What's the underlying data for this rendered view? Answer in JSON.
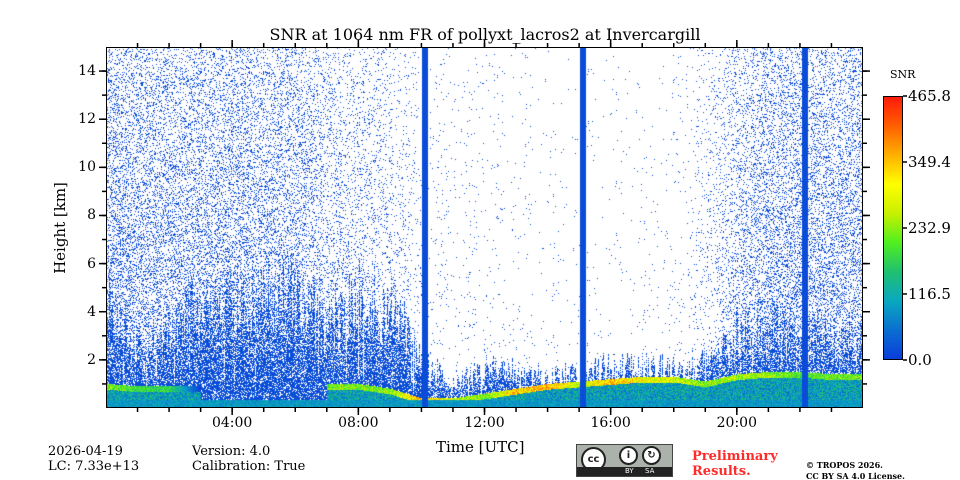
{
  "chart_data": {
    "type": "heatmap",
    "title": "SNR at 1064 nm FR of pollyxt_lacros2 at Invercargill",
    "xlabel": "Time [UTC]",
    "ylabel": "Height [km]",
    "xlim_hours": [
      0,
      24
    ],
    "ylim_km": [
      0,
      15
    ],
    "x_ticks": [
      {
        "h": 4,
        "label": "04:00"
      },
      {
        "h": 8,
        "label": "08:00"
      },
      {
        "h": 12,
        "label": "12:00"
      },
      {
        "h": 16,
        "label": "16:00"
      },
      {
        "h": 20,
        "label": "20:00"
      }
    ],
    "y_ticks": [
      {
        "v": 2,
        "label": "2"
      },
      {
        "v": 4,
        "label": "4"
      },
      {
        "v": 6,
        "label": "6"
      },
      {
        "v": 8,
        "label": "8"
      },
      {
        "v": 10,
        "label": "10"
      },
      {
        "v": 12,
        "label": "12"
      },
      {
        "v": 14,
        "label": "14"
      }
    ],
    "colorbar": {
      "title": "SNR",
      "range": [
        0.0,
        465.8
      ],
      "ticks": [
        {
          "v": 0.0,
          "label": "0.0"
        },
        {
          "v": 116.5,
          "label": "116.5"
        },
        {
          "v": 232.9,
          "label": "232.9"
        },
        {
          "v": 349.4,
          "label": "349.4"
        },
        {
          "v": 465.8,
          "label": "465.8"
        }
      ],
      "colors": [
        "#0a3ddb",
        "#0a6fd0",
        "#0aa8c0",
        "#20c070",
        "#50f020",
        "#c8f000",
        "#ffff00",
        "#ffb000",
        "#ff6000",
        "#ff1a0a"
      ]
    },
    "hourly_dense_top_km": [
      4.5,
      2.5,
      3.5,
      4.5,
      4.6,
      4.6,
      4.6,
      3.5,
      4.8,
      4.2,
      2.0,
      1.0,
      1.6,
      1.5,
      1.3,
      1.5,
      1.7,
      1.7,
      1.6,
      1.8,
      3.0,
      3.5,
      3.0,
      3.2
    ],
    "hourly_sparse_density": [
      0.35,
      0.3,
      0.3,
      0.3,
      0.3,
      0.28,
      0.28,
      0.18,
      0.15,
      0.1,
      0.03,
      0.02,
      0.02,
      0.015,
      0.01,
      0.01,
      0.01,
      0.012,
      0.015,
      0.05,
      0.2,
      0.3,
      0.3,
      0.3
    ],
    "hourly_layer_km": [
      0.9,
      0.8,
      0.8,
      null,
      null,
      null,
      null,
      0.9,
      0.9,
      0.7,
      0.3,
      0.3,
      0.5,
      0.7,
      0.9,
      1.0,
      1.1,
      1.2,
      1.2,
      1.0,
      1.3,
      1.4,
      1.4,
      1.3
    ],
    "hourly_layer_snr": [
      250,
      200,
      200,
      0,
      0,
      0,
      0,
      250,
      240,
      260,
      400,
      300,
      250,
      380,
      380,
      300,
      380,
      330,
      300,
      250,
      280,
      260,
      220,
      240
    ],
    "data_gaps_hours": [
      10.1,
      15.1,
      22.15
    ]
  },
  "footer": {
    "date": "2026-04-19",
    "lc": "LC: 7.33e+13",
    "version": "Version: 4.0",
    "calibration": "Calibration: True",
    "license_badge": {
      "by": "BY",
      "sa": "SA",
      "cc": "cc"
    },
    "preliminary_line1": "Preliminary",
    "preliminary_line2": "Results.",
    "copyright_line1": "© TROPOS 2026.",
    "copyright_line2": "CC BY SA 4.0 License."
  }
}
